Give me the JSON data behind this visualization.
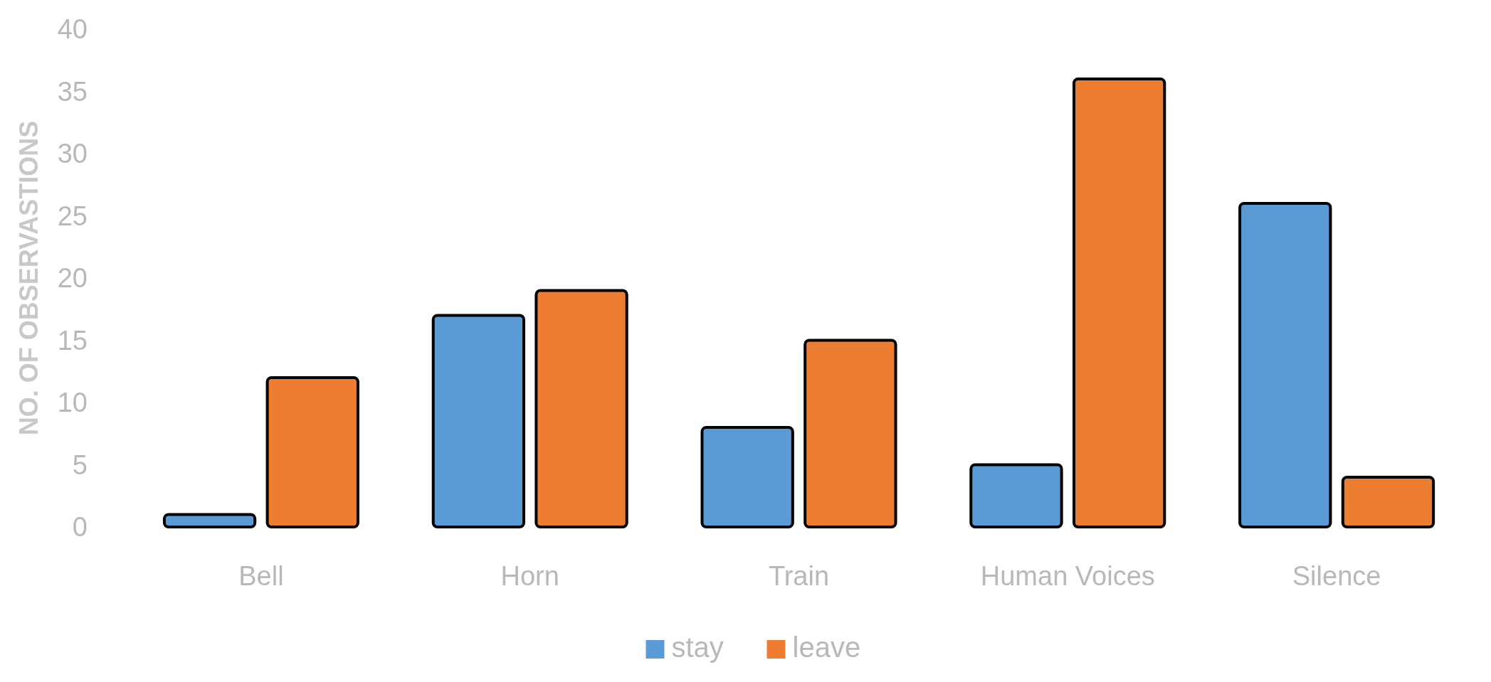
{
  "chart_data": {
    "type": "bar",
    "ylabel": "NO. OF OBSERVASTIONS",
    "categories": [
      "Bell",
      "Horn",
      "Train",
      "Human Voices",
      "Silence"
    ],
    "series": [
      {
        "name": "stay",
        "color": "#5b9bd5",
        "values": [
          1,
          17,
          8,
          5,
          26
        ]
      },
      {
        "name": "leave",
        "color": "#ed7d31",
        "values": [
          12,
          19,
          15,
          36,
          4
        ]
      }
    ],
    "ylim": [
      0,
      40
    ],
    "yticks": [
      0,
      5,
      10,
      15,
      20,
      25,
      30,
      35,
      40
    ],
    "grid": false,
    "legend": "bottom"
  }
}
